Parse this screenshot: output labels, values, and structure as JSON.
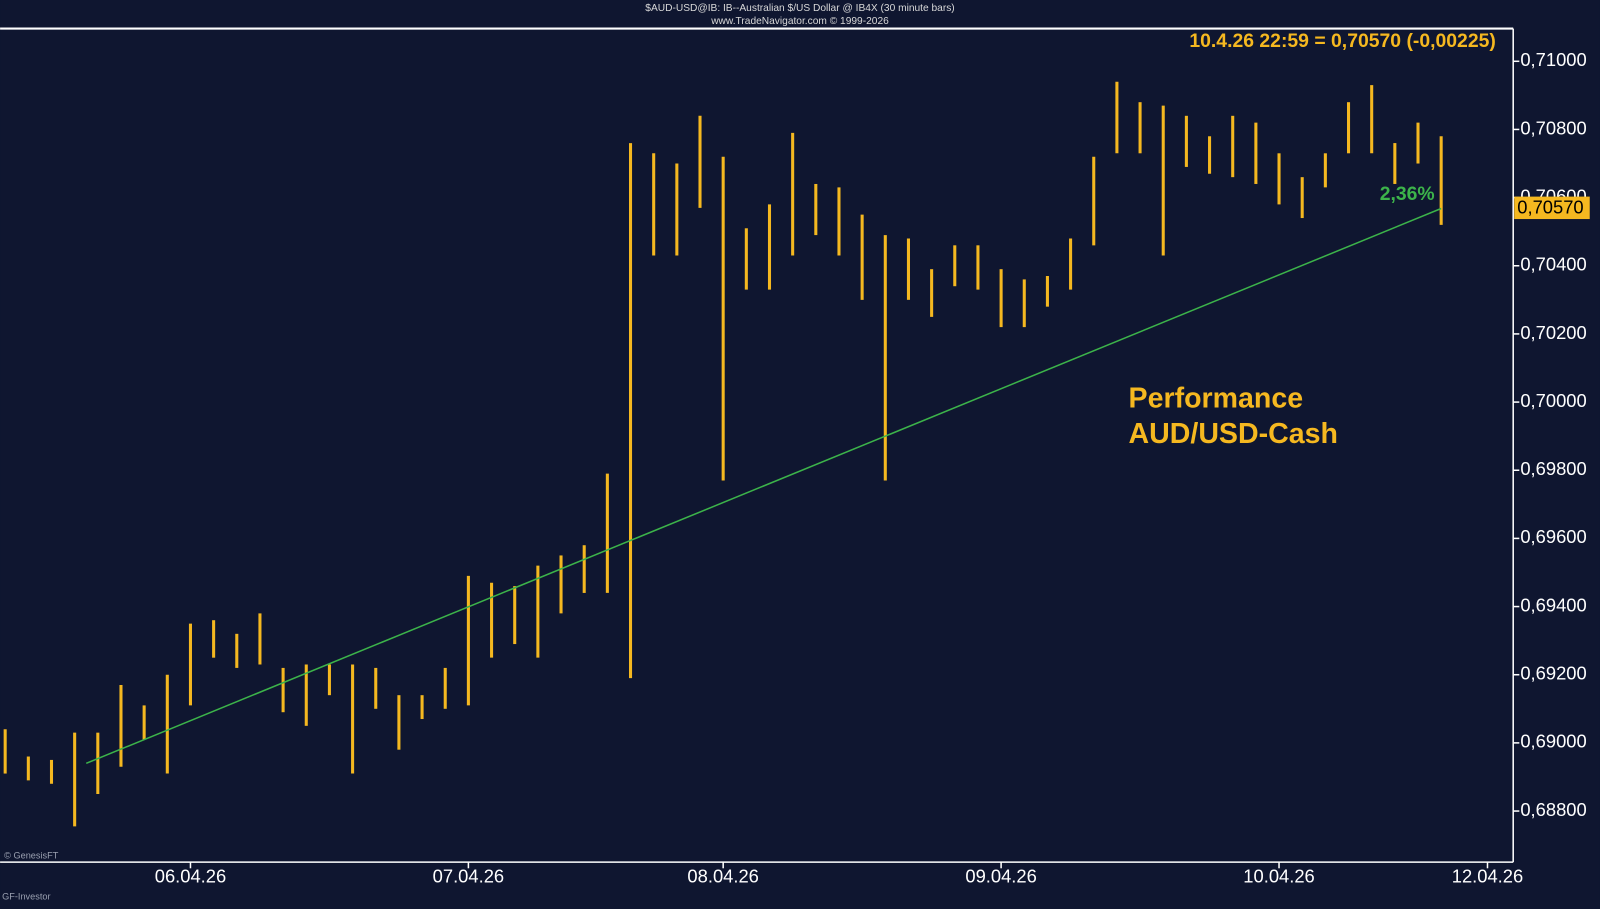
{
  "chart_data": {
    "type": "range-bar",
    "title": "$AUD-USD@IB: IB--Australian $/US Dollar @ IB4X  (30 minute bars)",
    "subtitle": "www.TradeNavigator.com © 1999-2026",
    "header": "10.4.26 22:59 = 0,70570 (-0,00225)",
    "annotation": "2,36%",
    "text_lines": [
      "Performance",
      "AUD/USD-Cash"
    ],
    "footer": [
      "© GenesisFT",
      "GF-Investor"
    ],
    "color": "#f5b820",
    "trend_color": "#3cb34a",
    "categories": [
      null,
      null,
      null,
      null,
      null,
      null,
      null,
      null,
      "06.04.26",
      null,
      null,
      null,
      null,
      null,
      null,
      null,
      null,
      null,
      null,
      null,
      "07.04.26",
      null,
      null,
      null,
      null,
      null,
      null,
      null,
      null,
      null,
      null,
      "08.04.26",
      null,
      null,
      null,
      null,
      null,
      null,
      null,
      null,
      null,
      null,
      null,
      "09.04.26",
      null,
      null,
      null,
      null,
      null,
      null,
      null,
      null,
      null,
      null,
      null,
      "10.04.26",
      null,
      null,
      null,
      null,
      null,
      null,
      null,
      null,
      "12.04.26"
    ],
    "high": [
      0.6904,
      0.6896,
      0.6895,
      0.6903,
      0.6903,
      0.6917,
      0.6911,
      0.692,
      0.6935,
      0.6936,
      0.6932,
      0.6938,
      0.6922,
      0.6923,
      0.6923,
      0.6923,
      0.6922,
      0.6914,
      0.6914,
      0.6922,
      0.6949,
      0.6947,
      0.6946,
      0.6952,
      0.6955,
      0.6958,
      0.6979,
      0.7076,
      0.7073,
      0.707,
      0.7084,
      0.7072,
      0.7051,
      0.7058,
      0.7079,
      0.7064,
      0.7063,
      0.7055,
      0.7049,
      0.7048,
      0.7039,
      0.7046,
      0.7046,
      0.7039,
      0.7036,
      0.7037,
      0.7048,
      0.7072,
      0.7094,
      0.7088,
      0.7087,
      0.7084,
      0.7078,
      0.7084,
      0.7082,
      0.7073,
      0.7066,
      0.7073,
      0.7088,
      0.7093,
      0.7076,
      0.7082,
      0.7078,
      null,
      null
    ],
    "low": [
      0.6891,
      0.6889,
      0.6888,
      0.68755,
      0.6885,
      0.6893,
      0.6901,
      0.6891,
      0.6911,
      0.6925,
      0.6922,
      0.6923,
      0.6909,
      0.6905,
      0.6914,
      0.6891,
      0.691,
      0.6898,
      0.6907,
      0.691,
      0.6911,
      0.6925,
      0.6929,
      0.6925,
      0.6938,
      0.6944,
      0.6944,
      0.6919,
      0.7043,
      0.7043,
      0.7057,
      0.6977,
      0.7033,
      0.7033,
      0.7043,
      0.7049,
      0.7043,
      0.703,
      0.6977,
      0.703,
      0.7025,
      0.7034,
      0.7033,
      0.7022,
      0.7022,
      0.7028,
      0.7033,
      0.7046,
      0.7073,
      0.7073,
      0.7043,
      0.7069,
      0.7067,
      0.7066,
      0.7064,
      0.7058,
      0.7054,
      0.7063,
      0.7073,
      0.7073,
      0.7064,
      0.707,
      0.7052,
      null,
      null
    ],
    "trend": [
      0.6894,
      0.70568
    ],
    "last_price": {
      "value": 0.7057,
      "label": "0,70570"
    },
    "ylim": [
      0.6865,
      0.7109
    ],
    "yticks": [
      {
        "value": 0.688,
        "label": "0,68800"
      },
      {
        "value": 0.69,
        "label": "0,69000"
      },
      {
        "value": 0.692,
        "label": "0,69200"
      },
      {
        "value": 0.694,
        "label": "0,69400"
      },
      {
        "value": 0.696,
        "label": "0,69600"
      },
      {
        "value": 0.698,
        "label": "0,69800"
      },
      {
        "value": 0.7,
        "label": "0,70000"
      },
      {
        "value": 0.702,
        "label": "0,70200"
      },
      {
        "value": 0.704,
        "label": "0,70400"
      },
      {
        "value": 0.706,
        "label": "0,70600"
      },
      {
        "value": 0.708,
        "label": "0,70800"
      },
      {
        "value": 0.71,
        "label": "0,71000"
      }
    ]
  }
}
